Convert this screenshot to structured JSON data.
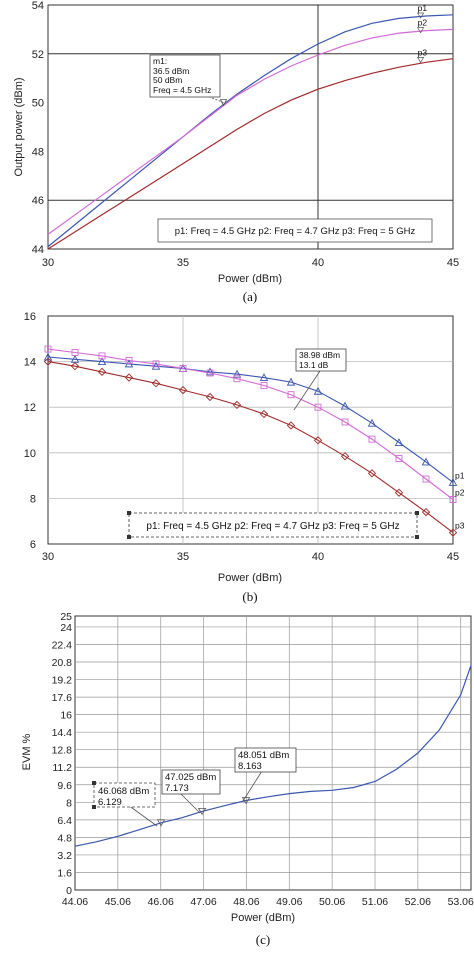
{
  "chart_data": [
    {
      "type": "line",
      "caption": "(a)",
      "xlabel": "Power (dBm)",
      "ylabel": "Output power (dBm)",
      "xlim": [
        30,
        45
      ],
      "ylim": [
        44,
        54
      ],
      "xticks": [
        "30",
        "35",
        "40",
        "45"
      ],
      "yticks": [
        "44",
        "46",
        "48",
        "50",
        "52",
        "54"
      ],
      "series": [
        {
          "name": "p1",
          "color": "#3a56b0",
          "x": [
            30,
            31,
            32,
            33,
            34,
            35,
            36,
            37,
            38,
            39,
            40,
            41,
            42,
            43,
            44,
            45
          ],
          "y": [
            44.1,
            45.0,
            45.9,
            46.8,
            47.7,
            48.6,
            49.5,
            50.35,
            51.1,
            51.8,
            52.4,
            52.9,
            53.25,
            53.45,
            53.55,
            53.6
          ]
        },
        {
          "name": "p2",
          "color": "#d36ad6",
          "x": [
            30,
            31,
            32,
            33,
            34,
            35,
            36,
            37,
            38,
            39,
            40,
            41,
            42,
            43,
            44,
            45
          ],
          "y": [
            44.6,
            45.4,
            46.2,
            47.0,
            47.8,
            48.6,
            49.45,
            50.3,
            50.95,
            51.5,
            51.95,
            52.35,
            52.65,
            52.85,
            52.95,
            53.0
          ]
        },
        {
          "name": "p3",
          "color": "#a02a2a",
          "x": [
            30,
            31,
            32,
            33,
            34,
            35,
            36,
            37,
            38,
            39,
            40,
            41,
            42,
            43,
            44,
            45
          ],
          "y": [
            44.0,
            44.7,
            45.4,
            46.1,
            46.8,
            47.5,
            48.2,
            48.9,
            49.55,
            50.1,
            50.55,
            50.9,
            51.2,
            51.45,
            51.65,
            51.8
          ]
        }
      ],
      "point_labels": [
        "p1",
        "p2",
        "p3"
      ],
      "marker": {
        "name": "m1",
        "x": 36.5,
        "y": 50,
        "lines": [
          "m1:",
          "36.5 dBm",
          "50 dBm",
          "Freq = 4.5 GHz"
        ]
      },
      "legend": {
        "placement": "bottom-right",
        "text": "p1: Freq = 4.5 GHz    p2: Freq = 4.7 GHz    p3: Freq = 5 GHz"
      }
    },
    {
      "type": "line",
      "caption": "(b)",
      "xlabel": "Power (dBm)",
      "ylabel": "",
      "xlim": [
        30,
        45
      ],
      "ylim": [
        6,
        16
      ],
      "xticks": [
        "30",
        "35",
        "40",
        "45"
      ],
      "yticks": [
        "6",
        "8",
        "10",
        "12",
        "14",
        "16"
      ],
      "series": [
        {
          "name": "p1",
          "color": "#3a56b0",
          "marker": "triangle",
          "x": [
            30,
            31,
            32,
            33,
            34,
            35,
            36,
            37,
            38,
            39,
            40,
            41,
            42,
            43,
            44,
            45
          ],
          "y": [
            14.2,
            14.1,
            14.0,
            13.9,
            13.8,
            13.7,
            13.55,
            13.45,
            13.3,
            13.1,
            12.7,
            12.05,
            11.3,
            10.45,
            9.6,
            8.7
          ]
        },
        {
          "name": "p2",
          "color": "#d36ad6",
          "marker": "square",
          "x": [
            30,
            31,
            32,
            33,
            34,
            35,
            36,
            37,
            38,
            39,
            40,
            41,
            42,
            43,
            44,
            45
          ],
          "y": [
            14.55,
            14.4,
            14.25,
            14.05,
            13.9,
            13.7,
            13.5,
            13.25,
            12.95,
            12.55,
            12.0,
            11.35,
            10.6,
            9.75,
            8.85,
            7.95
          ]
        },
        {
          "name": "p3",
          "color": "#a02a2a",
          "marker": "diamond",
          "x": [
            30,
            31,
            32,
            33,
            34,
            35,
            36,
            37,
            38,
            39,
            40,
            41,
            42,
            43,
            44,
            45
          ],
          "y": [
            14.0,
            13.8,
            13.55,
            13.3,
            13.05,
            12.75,
            12.45,
            12.1,
            11.7,
            11.2,
            10.55,
            9.85,
            9.1,
            8.25,
            7.4,
            6.5
          ]
        }
      ],
      "point_labels": [
        "p1",
        "p2",
        "p3"
      ],
      "marker": {
        "x": 38.98,
        "y": 13.1,
        "lines": [
          "38.98 dBm",
          "13.1 dB"
        ]
      },
      "legend": {
        "placement": "bottom-center",
        "text": "p1: Freq = 4.5 GHz   p2: Freq = 4.7 GHz   p3: Freq = 5 GHz"
      }
    },
    {
      "type": "line",
      "caption": "(c)",
      "xlabel": "Power (dBm)",
      "ylabel": "EVM %",
      "xlim": [
        44.06,
        53.3
      ],
      "ylim": [
        0,
        25
      ],
      "xticks": [
        44.06,
        45.06,
        46.06,
        47.06,
        48.06,
        49.06,
        50.06,
        51.06,
        52.06,
        53.06
      ],
      "xtick_labels": [
        "44.06",
        "45.06",
        "46.06",
        "47.06",
        "48.06",
        "49.06",
        "50.06",
        "51.06",
        "52.06",
        "53.06"
      ],
      "yticks": [
        0,
        1.6,
        3.2,
        4.8,
        6.4,
        8,
        9.6,
        11.2,
        12.8,
        14.4,
        16,
        17.6,
        19.2,
        20.8,
        22.4,
        24,
        25
      ],
      "ytick_labels": [
        "0",
        "1.6",
        "3.2",
        "4.8",
        "6.4",
        "8",
        "9.6",
        "11.2",
        "12.8",
        "14.4",
        "16",
        "17.6",
        "19.2",
        "20.8",
        "22.4",
        "24",
        "25"
      ],
      "series": [
        {
          "name": "",
          "color": "#3a56b0",
          "x": [
            44.06,
            44.56,
            45.06,
            45.56,
            46.068,
            46.56,
            47.025,
            47.56,
            48.051,
            48.56,
            49.06,
            49.56,
            50.06,
            50.56,
            51.06,
            51.56,
            52.06,
            52.56,
            53.06,
            53.3
          ],
          "y": [
            4.0,
            4.4,
            4.9,
            5.5,
            6.129,
            6.6,
            7.173,
            7.7,
            8.163,
            8.5,
            8.8,
            9.0,
            9.1,
            9.35,
            9.9,
            11.0,
            12.5,
            14.6,
            17.8,
            20.5
          ]
        }
      ],
      "markers": [
        {
          "x": 46.068,
          "y": 6.129,
          "lines": [
            "46.068 dBm",
            "6.129"
          ]
        },
        {
          "x": 47.025,
          "y": 7.173,
          "lines": [
            "47.025 dBm",
            "7.173"
          ]
        },
        {
          "x": 48.051,
          "y": 8.163,
          "lines": [
            "48.051 dBm",
            "8.163"
          ]
        }
      ]
    }
  ]
}
